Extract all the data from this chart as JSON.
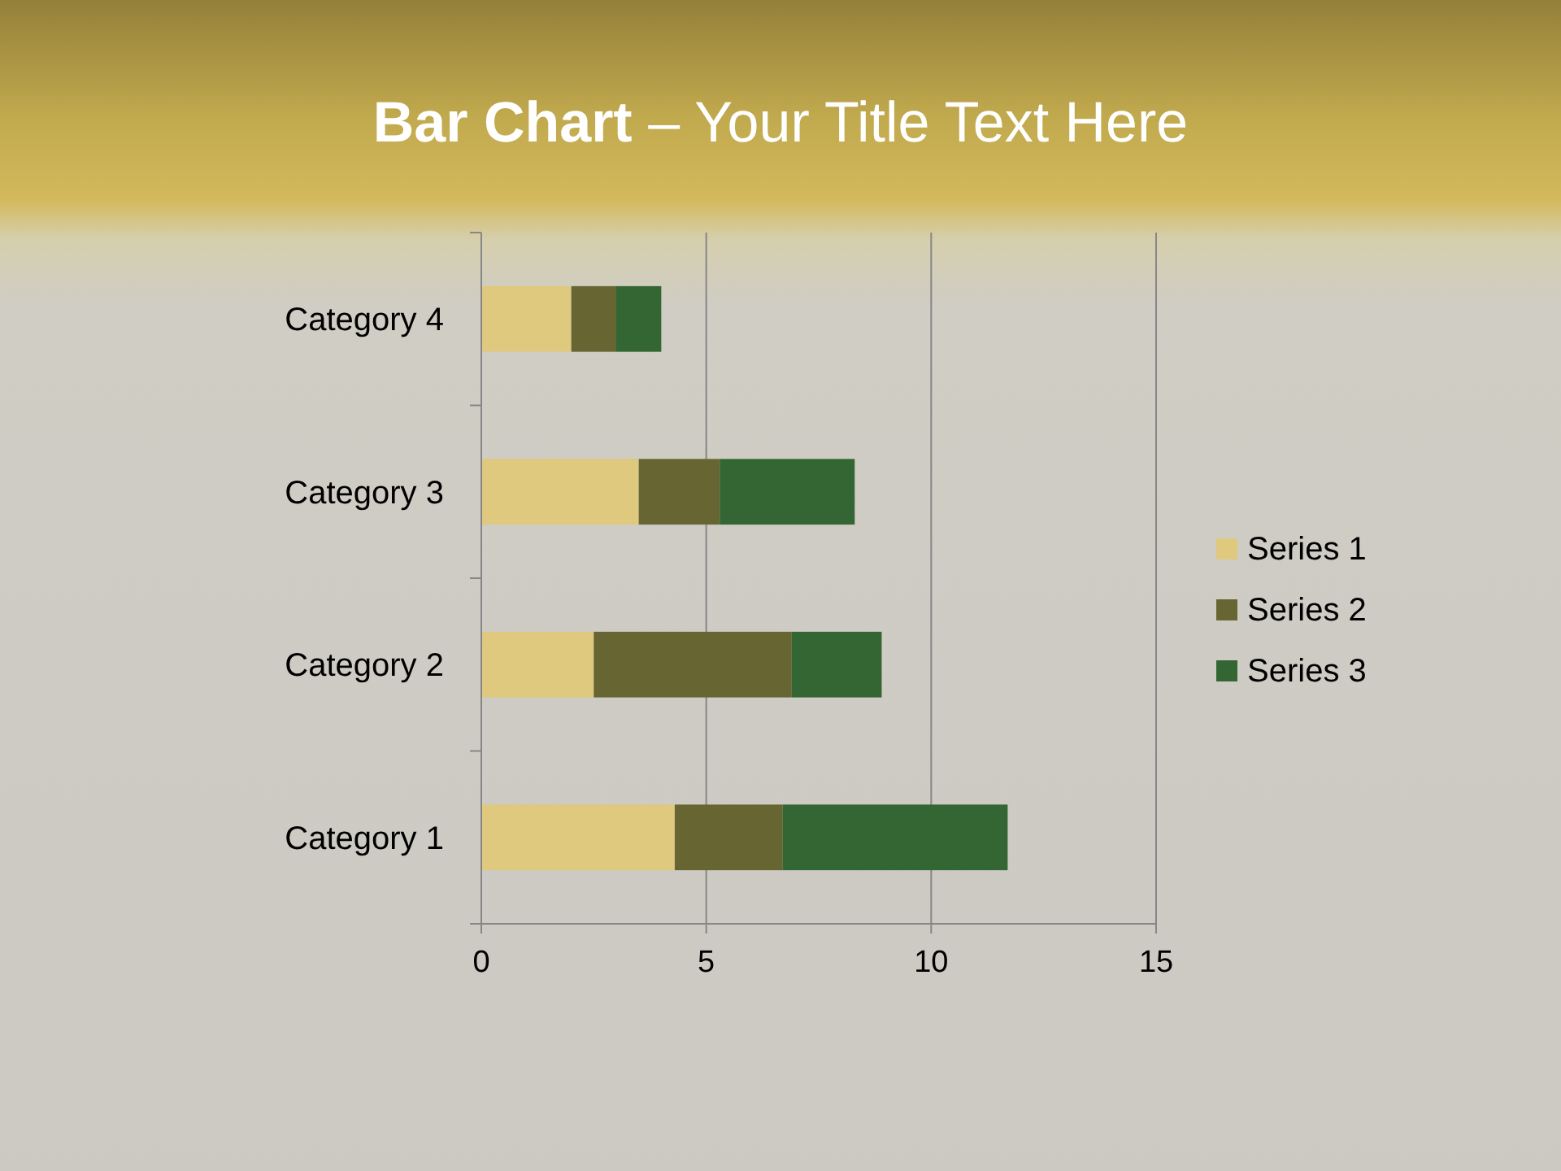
{
  "chart_data": {
    "type": "bar",
    "orientation": "horizontal",
    "stacked": true,
    "title": "Bar Chart – Your Title Text Here",
    "categories": [
      "Category 4",
      "Category 3",
      "Category 2",
      "Category 1"
    ],
    "series": [
      {
        "name": "Series 1",
        "color": "#dfc97f",
        "values": [
          2.0,
          3.5,
          2.5,
          4.3
        ]
      },
      {
        "name": "Series 2",
        "color": "#676633",
        "values": [
          1.0,
          1.8,
          4.4,
          2.4
        ]
      },
      {
        "name": "Series 3",
        "color": "#336633",
        "values": [
          1.0,
          3.0,
          2.0,
          5.0
        ]
      }
    ],
    "xlim": [
      0,
      15
    ],
    "xticks": [
      0,
      5,
      10,
      15
    ],
    "grid": "x",
    "legend": "right"
  }
}
